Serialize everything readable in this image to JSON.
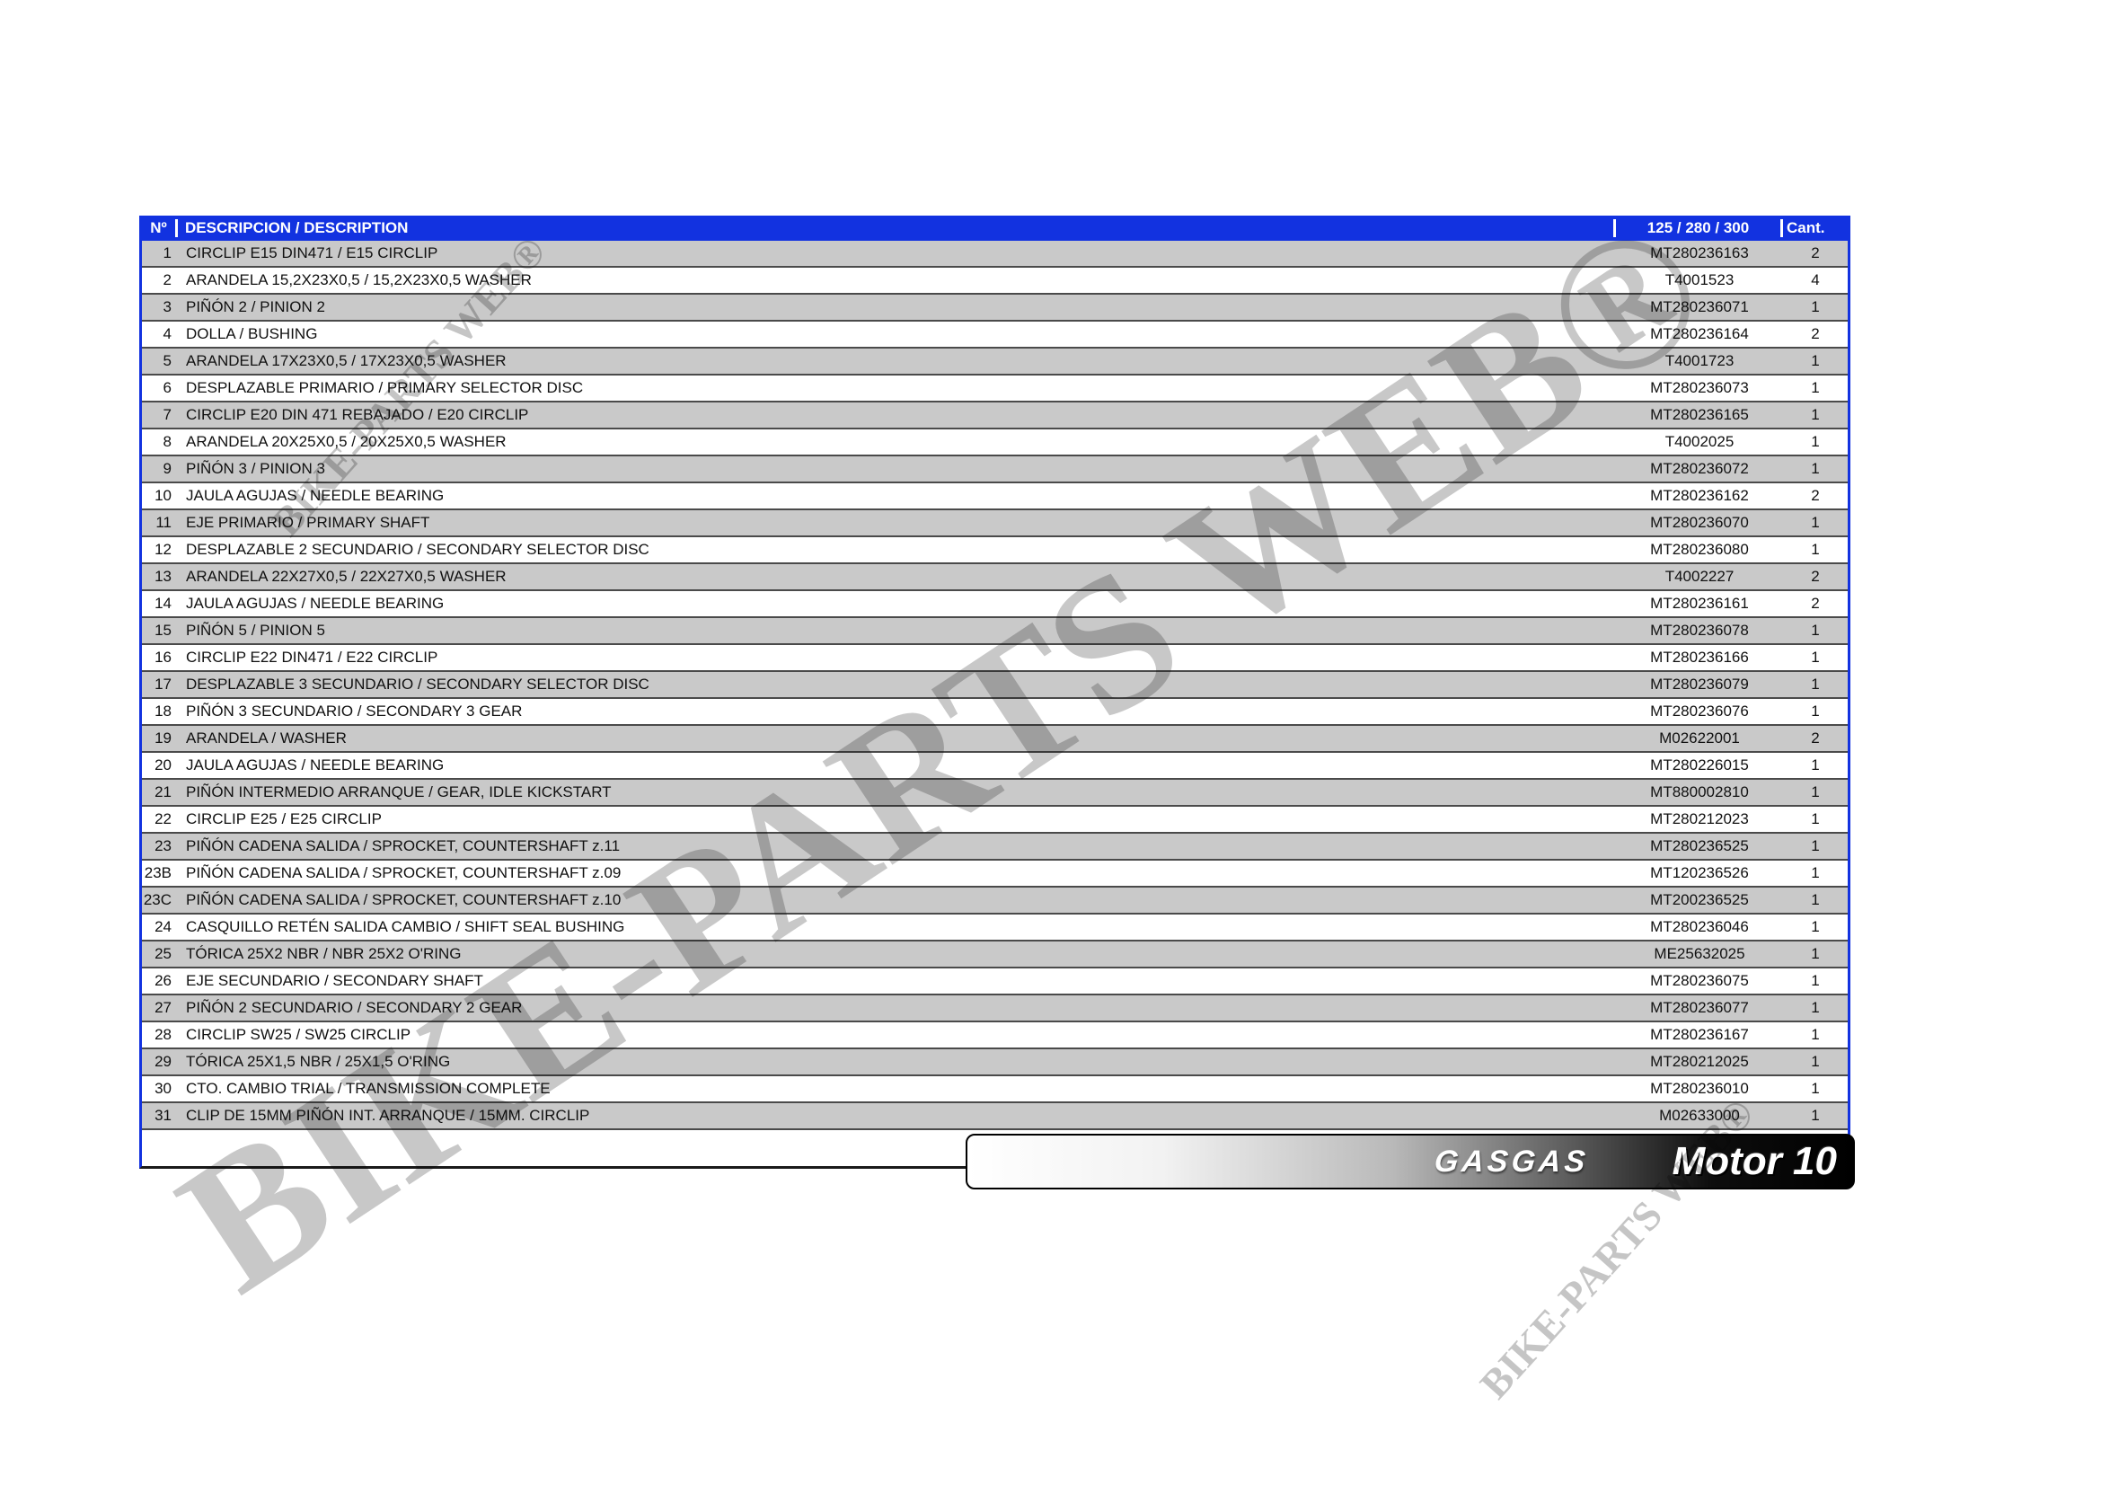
{
  "table": {
    "headers": {
      "no": "Nº",
      "description": "DESCRIPCION / DESCRIPTION",
      "part": "125 / 280 / 300",
      "qty": "Cant."
    },
    "rows": [
      {
        "no": "1",
        "description": "CIRCLIP E15 DIN471 / E15 CIRCLIP",
        "part": "MT280236163",
        "qty": "2"
      },
      {
        "no": "2",
        "description": "ARANDELA 15,2X23X0,5 / 15,2X23X0,5 WASHER",
        "part": "T4001523",
        "qty": "4"
      },
      {
        "no": "3",
        "description": "PIÑÓN 2 / PINION 2",
        "part": "MT280236071",
        "qty": "1"
      },
      {
        "no": "4",
        "description": "DOLLA / BUSHING",
        "part": "MT280236164",
        "qty": "2"
      },
      {
        "no": "5",
        "description": "ARANDELA 17X23X0,5 / 17X23X0,5 WASHER",
        "part": "T4001723",
        "qty": "1"
      },
      {
        "no": "6",
        "description": "DESPLAZABLE PRIMARIO / PRIMARY SELECTOR DISC",
        "part": "MT280236073",
        "qty": "1"
      },
      {
        "no": "7",
        "description": "CIRCLIP E20 DIN 471 REBAJADO / E20 CIRCLIP",
        "part": "MT280236165",
        "qty": "1"
      },
      {
        "no": "8",
        "description": "ARANDELA 20X25X0,5 / 20X25X0,5 WASHER",
        "part": "T4002025",
        "qty": "1"
      },
      {
        "no": "9",
        "description": "PIÑÓN 3 / PINION 3",
        "part": "MT280236072",
        "qty": "1"
      },
      {
        "no": "10",
        "description": "JAULA AGUJAS / NEEDLE BEARING",
        "part": "MT280236162",
        "qty": "2"
      },
      {
        "no": "11",
        "description": "EJE PRIMARIO / PRIMARY SHAFT",
        "part": "MT280236070",
        "qty": "1"
      },
      {
        "no": "12",
        "description": "DESPLAZABLE 2 SECUNDARIO / SECONDARY SELECTOR DISC",
        "part": "MT280236080",
        "qty": "1"
      },
      {
        "no": "13",
        "description": "ARANDELA 22X27X0,5 / 22X27X0,5 WASHER",
        "part": "T4002227",
        "qty": "2"
      },
      {
        "no": "14",
        "description": "JAULA AGUJAS / NEEDLE BEARING",
        "part": "MT280236161",
        "qty": "2"
      },
      {
        "no": "15",
        "description": "PIÑÓN 5 / PINION 5",
        "part": "MT280236078",
        "qty": "1"
      },
      {
        "no": "16",
        "description": "CIRCLIP E22 DIN471 / E22 CIRCLIP",
        "part": "MT280236166",
        "qty": "1"
      },
      {
        "no": "17",
        "description": "DESPLAZABLE 3 SECUNDARIO / SECONDARY SELECTOR DISC",
        "part": "MT280236079",
        "qty": "1"
      },
      {
        "no": "18",
        "description": "PIÑÓN 3 SECUNDARIO / SECONDARY 3 GEAR",
        "part": "MT280236076",
        "qty": "1"
      },
      {
        "no": "19",
        "description": "ARANDELA / WASHER",
        "part": "M02622001",
        "qty": "2"
      },
      {
        "no": "20",
        "description": "JAULA AGUJAS / NEEDLE BEARING",
        "part": "MT280226015",
        "qty": "1"
      },
      {
        "no": "21",
        "description": "PIÑÓN INTERMEDIO ARRANQUE / GEAR, IDLE KICKSTART",
        "part": "MT880002810",
        "qty": "1"
      },
      {
        "no": "22",
        "description": "CIRCLIP E25 / E25 CIRCLIP",
        "part": "MT280212023",
        "qty": "1"
      },
      {
        "no": "23",
        "description": "PIÑÓN CADENA SALIDA / SPROCKET, COUNTERSHAFT  z.11",
        "part": "MT280236525",
        "qty": "1"
      },
      {
        "no": "23B",
        "description": "PIÑÓN CADENA SALIDA / SPROCKET, COUNTERSHAFT  z.09",
        "part": "MT120236526",
        "qty": "1"
      },
      {
        "no": "23C",
        "description": "PIÑÓN CADENA SALIDA / SPROCKET, COUNTERSHAFT  z.10",
        "part": "MT200236525",
        "qty": "1"
      },
      {
        "no": "24",
        "description": "CASQUILLO RETÉN SALIDA CAMBIO / SHIFT SEAL BUSHING",
        "part": "MT280236046",
        "qty": "1"
      },
      {
        "no": "25",
        "description": "TÓRICA 25X2 NBR / NBR 25X2 O'RING",
        "part": "ME25632025",
        "qty": "1"
      },
      {
        "no": "26",
        "description": "EJE SECUNDARIO / SECONDARY SHAFT",
        "part": "MT280236075",
        "qty": "1"
      },
      {
        "no": "27",
        "description": "PIÑÓN 2 SECUNDARIO / SECONDARY 2 GEAR",
        "part": "MT280236077",
        "qty": "1"
      },
      {
        "no": "28",
        "description": "CIRCLIP SW25 / SW25 CIRCLIP",
        "part": "MT280236167",
        "qty": "1"
      },
      {
        "no": "29",
        "description": "TÓRICA 25X1,5 NBR / 25X1,5 O'RING",
        "part": "MT280212025",
        "qty": "1"
      },
      {
        "no": "30",
        "description": "CTO. CAMBIO TRIAL / TRANSMISSION COMPLETE",
        "part": "MT280236010",
        "qty": "1"
      },
      {
        "no": "31",
        "description": "CLIP DE 15MM PIÑÓN INT. ARRANQUE / 15MM. CIRCLIP",
        "part": "M02633000",
        "qty": "1"
      }
    ]
  },
  "banner": {
    "brand": "GASGAS",
    "model": "Motor 10"
  },
  "watermark": {
    "large": "BIKE-PARTS WEB®",
    "top_left": "BIKE-PARTS WEB®",
    "bottom_right": "BIKE-PARTS WEB®"
  },
  "colors": {
    "header_blue": "#1232E0",
    "row_gray": "#C9C9C9",
    "row_separator": "#4A4A4A",
    "table_bottom_border": "#1A1A1A",
    "watermark_gray": "#919191",
    "banner_black": "#000000"
  }
}
